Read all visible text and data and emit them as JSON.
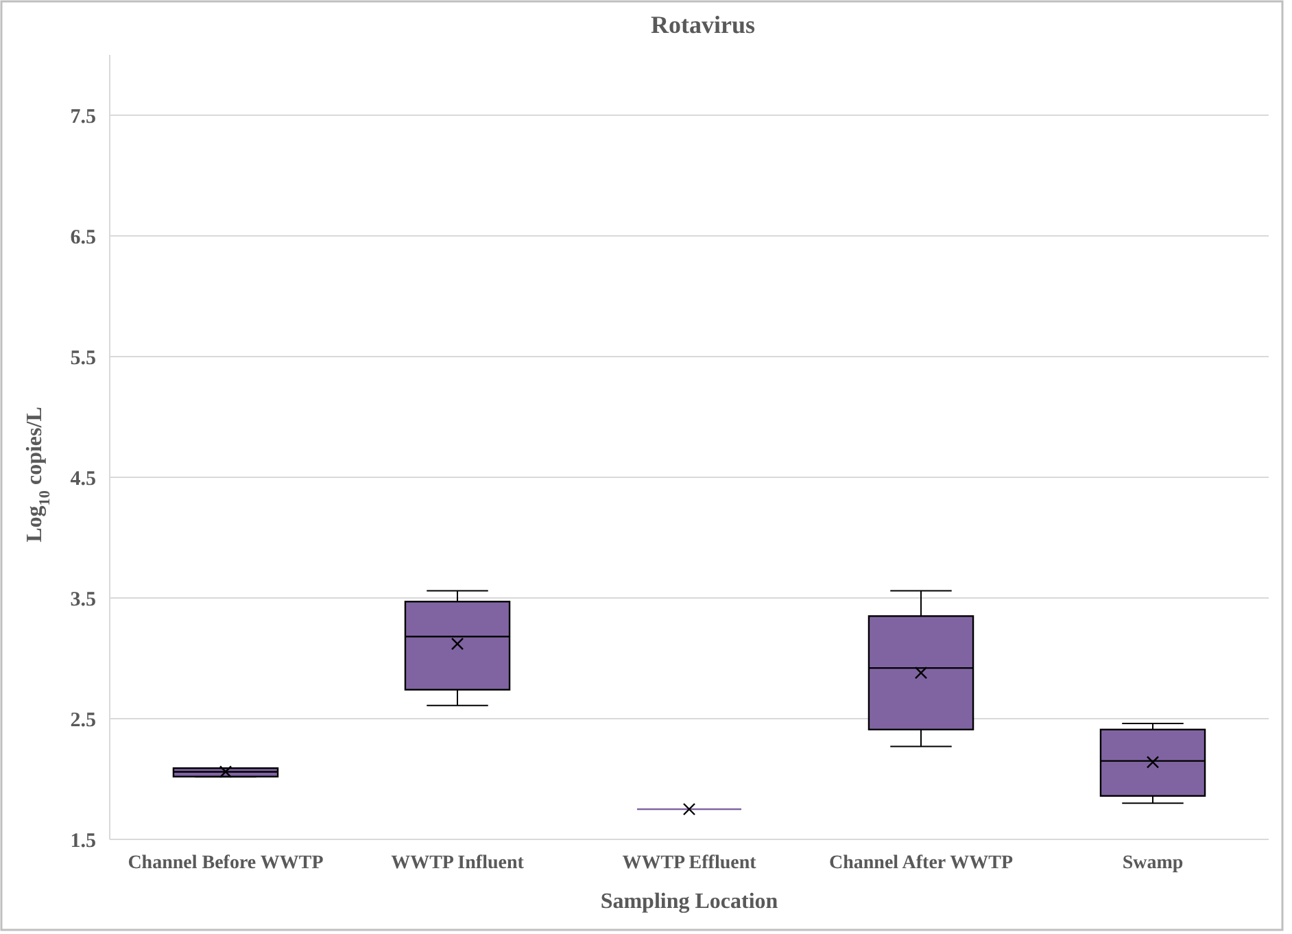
{
  "chart_data": {
    "type": "box",
    "title": "Rotavirus",
    "xlabel": "Sampling Location",
    "ylabel": "Log$_{10}$ copies/L",
    "categories": [
      "Channel Before WWTP",
      "WWTP Influent",
      "WWTP Effluent",
      "Channel After WWTP",
      "Swamp"
    ],
    "boxes": [
      {
        "low": 2.02,
        "q1": 2.02,
        "median": 2.06,
        "q3": 2.09,
        "high": 2.09,
        "mean": 2.06
      },
      {
        "low": 2.61,
        "q1": 2.74,
        "median": 3.18,
        "q3": 3.47,
        "high": 3.56,
        "mean": 3.12
      },
      {
        "low": 1.75,
        "q1": 1.75,
        "median": 1.75,
        "q3": 1.75,
        "high": 1.75,
        "mean": 1.75
      },
      {
        "low": 2.27,
        "q1": 2.41,
        "median": 2.92,
        "q3": 3.35,
        "high": 3.56,
        "mean": 2.88
      },
      {
        "low": 1.8,
        "q1": 1.86,
        "median": 2.15,
        "q3": 2.41,
        "high": 2.46,
        "mean": 2.14
      }
    ],
    "color": "#8064a2",
    "ylim": [
      1.5,
      8
    ],
    "yticks": [
      1.5,
      2.5,
      3.5,
      4.5,
      5.5,
      6.5,
      7.5
    ],
    "grid": "y"
  }
}
